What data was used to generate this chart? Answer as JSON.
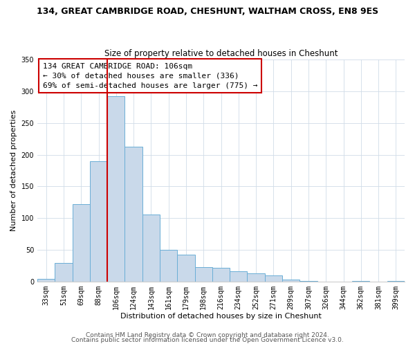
{
  "title1": "134, GREAT CAMBRIDGE ROAD, CHESHUNT, WALTHAM CROSS, EN8 9ES",
  "title2": "Size of property relative to detached houses in Cheshunt",
  "xlabel": "Distribution of detached houses by size in Cheshunt",
  "ylabel": "Number of detached properties",
  "bar_labels": [
    "33sqm",
    "51sqm",
    "69sqm",
    "88sqm",
    "106sqm",
    "124sqm",
    "143sqm",
    "161sqm",
    "179sqm",
    "198sqm",
    "216sqm",
    "234sqm",
    "252sqm",
    "271sqm",
    "289sqm",
    "307sqm",
    "326sqm",
    "344sqm",
    "362sqm",
    "381sqm",
    "399sqm"
  ],
  "bar_values": [
    4,
    29,
    122,
    190,
    292,
    213,
    106,
    50,
    42,
    23,
    22,
    16,
    13,
    10,
    3,
    1,
    0,
    0,
    1,
    0,
    1
  ],
  "bar_color": "#c9d9ea",
  "bar_edge_color": "#6aaed6",
  "vline_x": 4,
  "vline_color": "#cc0000",
  "annotation_box_text": "134 GREAT CAMBRIDGE ROAD: 106sqm\n← 30% of detached houses are smaller (336)\n69% of semi-detached houses are larger (775) →",
  "annotation_box_color": "#cc0000",
  "ylim": [
    0,
    350
  ],
  "yticks": [
    0,
    50,
    100,
    150,
    200,
    250,
    300,
    350
  ],
  "footer1": "Contains HM Land Registry data © Crown copyright and database right 2024.",
  "footer2": "Contains public sector information licensed under the Open Government Licence v3.0.",
  "bg_color": "#ffffff",
  "plot_bg_color": "#ffffff",
  "title1_fontsize": 9,
  "title2_fontsize": 8.5,
  "axis_label_fontsize": 8,
  "tick_fontsize": 7,
  "annotation_fontsize": 8,
  "footer_fontsize": 6.5,
  "grid_color": "#d0dce8"
}
